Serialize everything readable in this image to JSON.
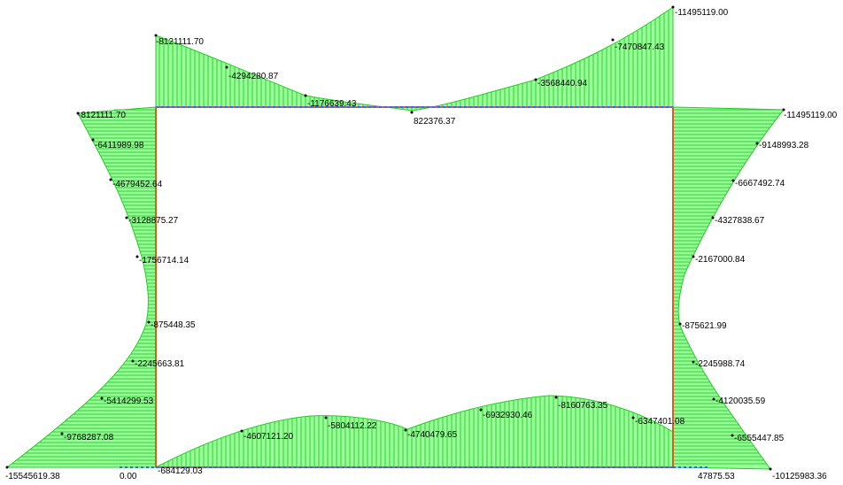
{
  "labels": {
    "top_left_end": "-8121111.70",
    "top_q1": "-4294280.87",
    "top_mid_left": "-1176639.43",
    "top_mid": "822376.37",
    "top_mid_right": "-3568440.94",
    "top_q3": "-7470847.43",
    "top_right_end": "-11495119.00",
    "left_top": "-8121111.70",
    "left_1": "-6411989.98",
    "left_2": "-4679452.64",
    "left_3": "-3128875.27",
    "left_4": "-1756714.14",
    "left_5": "-875448.35",
    "left_6": "-2245663.81",
    "left_7": "-5414299.53",
    "left_8": "-9768287.08",
    "left_bottom": "-15545619.38",
    "right_top": "-11495119.00",
    "right_1": "-9148993.28",
    "right_2": "-6667492.74",
    "right_3": "-4327838.67",
    "right_4": "-2167000.84",
    "right_5": "-875621.99",
    "right_6": "-2245988.74",
    "right_7": "-4120035.59",
    "right_8": "-6555447.85",
    "right_bottom": "-10125983.36",
    "bottom_left_end": "-684129.03",
    "bottom_1": "-4607121.20",
    "bottom_2": "-5804112.22",
    "bottom_3": "-4740479.65",
    "bottom_4": "-6932930.46",
    "bottom_5": "-8160763.35",
    "bottom_6": "-6347401.08",
    "support_left": "0.00",
    "support_right": "47875.53"
  },
  "colors": {
    "diagram_fill": "#99ff99",
    "diagram_stroke": "#22cc22",
    "member": "#e05a1a",
    "member_dash": "#3366ff"
  }
}
